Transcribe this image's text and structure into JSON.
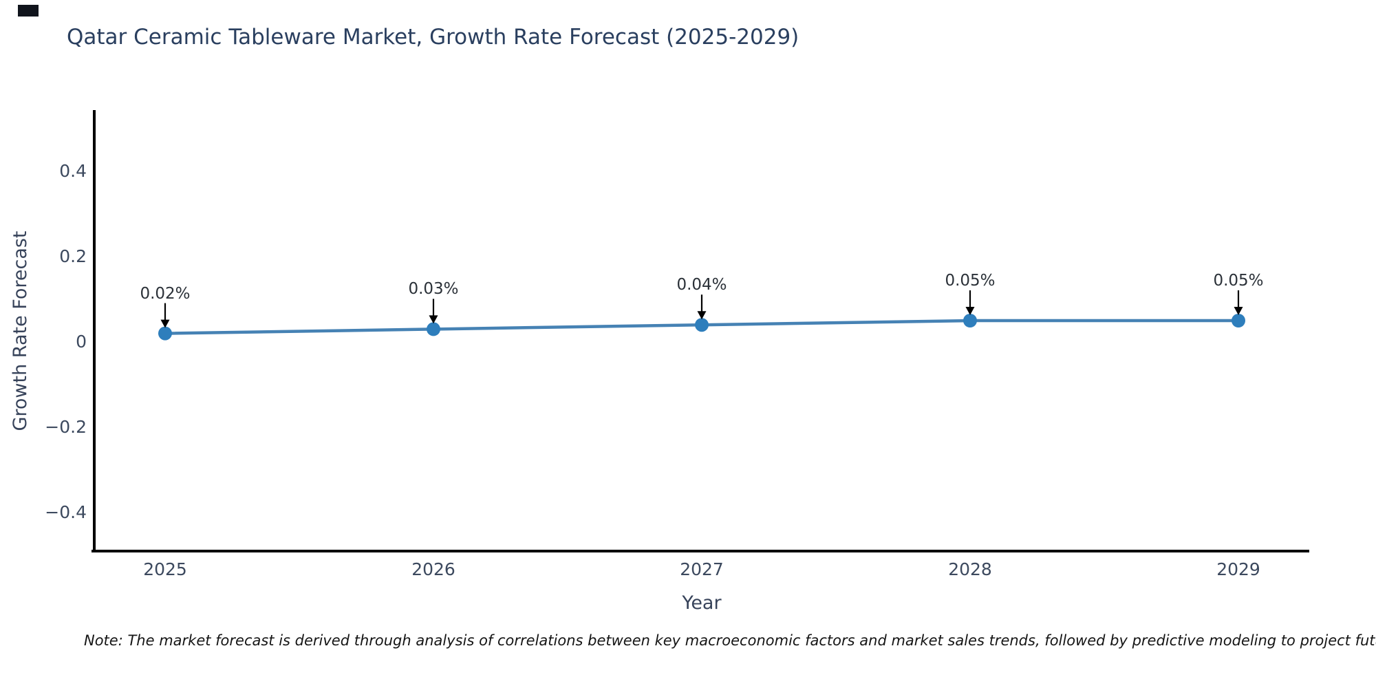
{
  "note": {
    "text": "Note: The market forecast is derived through analysis of correlations between key macroeconomic factors and market sales trends, followed by predictive modeling to project future sales"
  },
  "chart_data": {
    "type": "line",
    "title": "Qatar Ceramic Tableware Market, Growth Rate Forecast (2025-2029)",
    "xlabel": "Year",
    "ylabel": "Growth Rate Forecast",
    "x": [
      2025,
      2026,
      2027,
      2028,
      2029
    ],
    "xtick_labels": [
      "2025",
      "2026",
      "2027",
      "2028",
      "2029"
    ],
    "series": [
      {
        "name": "Growth Rate Forecast",
        "values": [
          0.02,
          0.03,
          0.04,
          0.05,
          0.05
        ]
      }
    ],
    "point_labels": [
      "0.02%",
      "0.03%",
      "0.04%",
      "0.05%",
      "0.05%"
    ],
    "yticks": {
      "labels": [
        "0.4",
        "0.2",
        "0",
        "−0.2",
        "−0.4"
      ],
      "values": [
        0.4,
        0.2,
        0,
        -0.2,
        -0.4
      ]
    },
    "ylim": [
      -0.49,
      0.54
    ],
    "grid": false,
    "legend": "none",
    "annotation_style": "value label with downward arrow to each marker",
    "colors": {
      "line": "#4682b4",
      "marker": "#2e7ebc",
      "arrow": "#000000",
      "spine": "#000000",
      "title_text": "#2a3f5f"
    }
  }
}
